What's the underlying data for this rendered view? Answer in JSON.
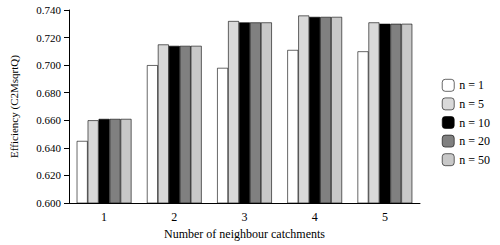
{
  "chart_data": {
    "type": "bar",
    "x_label": "Number of neighbour catchments",
    "y_label": "Efficiency (C2MsqrtQ)",
    "categories": [
      "1",
      "2",
      "3",
      "4",
      "5"
    ],
    "series": [
      {
        "name": "n = 1",
        "color": "#ffffff",
        "values": [
          0.645,
          0.7,
          0.698,
          0.711,
          0.71
        ]
      },
      {
        "name": "n = 5",
        "color": "#d9d9d9",
        "values": [
          0.66,
          0.715,
          0.732,
          0.736,
          0.731
        ]
      },
      {
        "name": "n = 10",
        "color": "#000000",
        "values": [
          0.661,
          0.714,
          0.731,
          0.735,
          0.73
        ]
      },
      {
        "name": "n = 20",
        "color": "#808080",
        "values": [
          0.661,
          0.714,
          0.731,
          0.735,
          0.73
        ]
      },
      {
        "name": "n = 50",
        "color": "#c8c8c8",
        "values": [
          0.661,
          0.714,
          0.731,
          0.735,
          0.73
        ]
      }
    ],
    "ylim": [
      0.6,
      0.74
    ],
    "yticks": [
      {
        "value": 0.6,
        "label": "0.600"
      },
      {
        "value": 0.62,
        "label": "0.620"
      },
      {
        "value": 0.64,
        "label": "0.640"
      },
      {
        "value": 0.66,
        "label": "0.660"
      },
      {
        "value": 0.68,
        "label": "0.680"
      },
      {
        "value": 0.7,
        "label": "0.700"
      },
      {
        "value": 0.72,
        "label": "0.720"
      },
      {
        "value": 0.74,
        "label": "0.740"
      }
    ],
    "grid": false,
    "legend": "right"
  }
}
